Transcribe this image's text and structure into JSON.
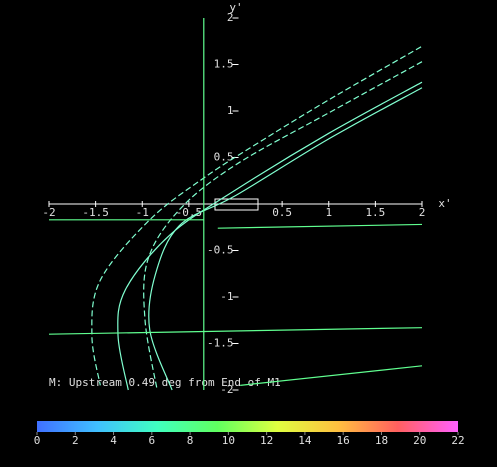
{
  "chart_data": {
    "type": "line",
    "x_label": "x'",
    "y_label": "y'",
    "annotation": "M: Upstream 0.49 deg from End of M1",
    "xlim": [
      -2,
      2
    ],
    "ylim": [
      -2,
      2
    ],
    "xticks": [
      -2,
      -1.5,
      -1,
      -0.5,
      0.5,
      1,
      1.5,
      2
    ],
    "yticks": [
      2,
      1.5,
      1,
      0.5,
      -0.5,
      -1,
      -1.5,
      -2
    ],
    "series": [
      {
        "color": "#80ffd0",
        "dashed": true,
        "x": [
          1.99,
          1.0,
          0.2,
          -0.34,
          -0.92,
          -1.45,
          -1.54,
          -1.45
        ],
        "y": [
          1.69,
          1.12,
          0.63,
          0.28,
          -0.17,
          -0.82,
          -1.41,
          -1.95
        ]
      },
      {
        "color": "#80ffd0",
        "dashed": true,
        "x": [
          2,
          1.0,
          0.0,
          -0.6,
          -0.94,
          -0.97,
          -0.84
        ],
        "y": [
          1.53,
          0.98,
          0.42,
          -0.06,
          -0.6,
          -1.25,
          -2
        ]
      },
      {
        "color": "#80ffd0",
        "dashed": false,
        "x": [
          2,
          1.0,
          0.0,
          -0.7,
          -1.18,
          -1.26,
          -1.15
        ],
        "y": [
          1.31,
          0.76,
          0.15,
          -0.33,
          -0.92,
          -1.41,
          -2
        ]
      },
      {
        "color": "#80ffd0",
        "dashed": false,
        "x": [
          2,
          1.0,
          0.0,
          -0.6,
          -0.86,
          -0.92,
          -0.68
        ],
        "y": [
          1.25,
          0.7,
          0.09,
          -0.23,
          -0.76,
          -1.35,
          -2
        ]
      },
      {
        "color": "#60ff90",
        "dashed": false,
        "x": [
          -2,
          -0.34
        ],
        "y": [
          -0.17,
          -0.17
        ]
      },
      {
        "color": "#60ff90",
        "dashed": false,
        "x": [
          -0.19,
          2
        ],
        "y": [
          -0.26,
          -0.22
        ]
      },
      {
        "color": "#60ff90",
        "dashed": false,
        "x": [
          -2,
          2
        ],
        "y": [
          -1.4,
          -1.33
        ]
      },
      {
        "color": "#60ff90",
        "dashed": false,
        "x": [
          0.05,
          2
        ],
        "y": [
          -1.95,
          -1.74
        ]
      },
      {
        "color": "#60ff90",
        "dashed": false,
        "x": [
          -0.34,
          -0.34
        ],
        "y": [
          2,
          -2
        ]
      }
    ],
    "colorbar": {
      "lim": [
        0,
        22
      ],
      "ticks": [
        0,
        2,
        4,
        6,
        8,
        10,
        12,
        14,
        16,
        18,
        20,
        22
      ],
      "colors": [
        "#4070ff",
        "#40c0ff",
        "#40ffc0",
        "#60ff60",
        "#e0ff40",
        "#ffc040",
        "#ff6060",
        "#ff60ff"
      ]
    }
  }
}
